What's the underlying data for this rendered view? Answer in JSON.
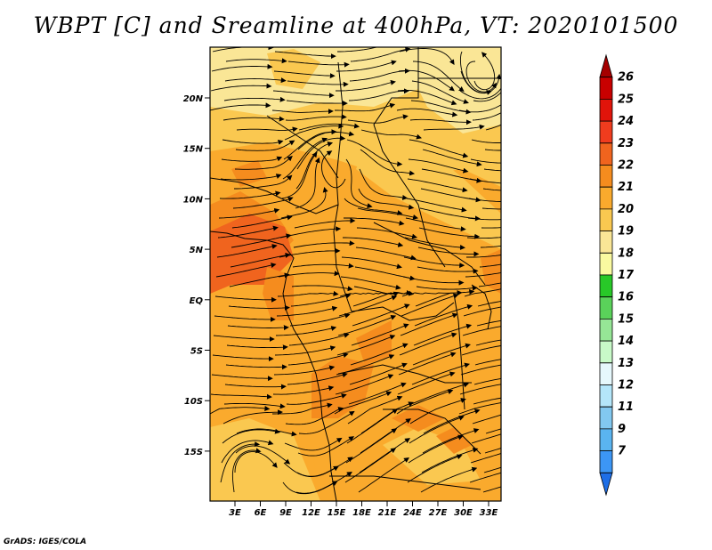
{
  "title": "WBPT [C] and Sreamline at 400hPa, VT: 2020101500",
  "footer": "GrADS: IGES/COLA",
  "map": {
    "lat_ticks": [
      "20N",
      "15N",
      "10N",
      "5N",
      "EQ",
      "5S",
      "10S",
      "15S"
    ],
    "lon_ticks": [
      "3E",
      "6E",
      "9E",
      "12E",
      "15E",
      "18E",
      "21E",
      "24E",
      "27E",
      "30E",
      "33E"
    ],
    "field": "wet-bulb potential temperature shading with streamlines"
  },
  "colorbar": {
    "labels": [
      "26",
      "25",
      "24",
      "23",
      "22",
      "21",
      "20",
      "19",
      "18",
      "17",
      "16",
      "15",
      "14",
      "13",
      "12",
      "11",
      "9",
      "7"
    ],
    "colors": [
      "#a50000",
      "#c80000",
      "#e1140a",
      "#f03c1e",
      "#f0641e",
      "#f58c1e",
      "#faaa2d",
      "#fac850",
      "#fae696",
      "#fafaa0",
      "#28c828",
      "#5ad25a",
      "#96e696",
      "#c8fac8",
      "#e6f8fc",
      "#b4e6fa",
      "#82c8f0",
      "#5ab4f0",
      "#3c96f5",
      "#1e6ee6"
    ]
  }
}
